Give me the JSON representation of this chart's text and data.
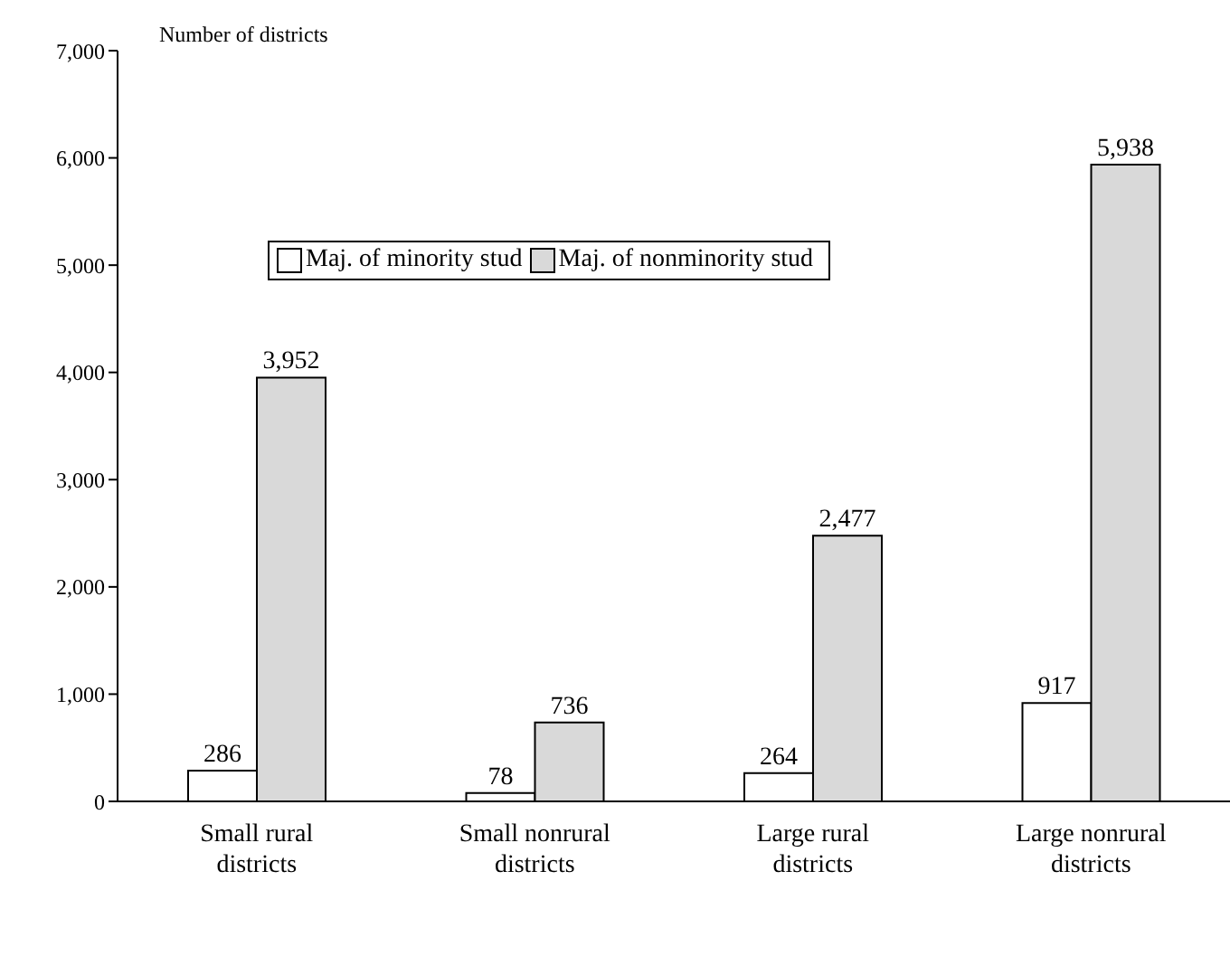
{
  "chart_data": {
    "type": "bar",
    "ylabel": "Number of districts",
    "categories": [
      "Small rural districts",
      "Small nonrural districts",
      "Large rural districts",
      "Large nonrural districts"
    ],
    "series": [
      {
        "name": "Maj. of minority stud",
        "color": "#ffffff",
        "values": [
          286,
          78,
          264,
          917
        ],
        "value_labels": [
          "286",
          "78",
          "264",
          "917"
        ]
      },
      {
        "name": "Maj. of nonminority stud",
        "color": "#d9d9d9",
        "values": [
          3952,
          736,
          2477,
          5938
        ],
        "value_labels": [
          "3,952",
          "736",
          "2,477",
          "5,938"
        ]
      }
    ],
    "ylim": [
      0,
      7000
    ],
    "yticks": [
      {
        "value": 0,
        "label": "0"
      },
      {
        "value": 1000,
        "label": "1,000"
      },
      {
        "value": 2000,
        "label": "2,000"
      },
      {
        "value": 3000,
        "label": "3,000"
      },
      {
        "value": 4000,
        "label": "4,000"
      },
      {
        "value": 5000,
        "label": "5,000"
      },
      {
        "value": 6000,
        "label": "6,000"
      },
      {
        "value": 7000,
        "label": "7,000"
      }
    ],
    "legend": "top",
    "grid": false
  }
}
